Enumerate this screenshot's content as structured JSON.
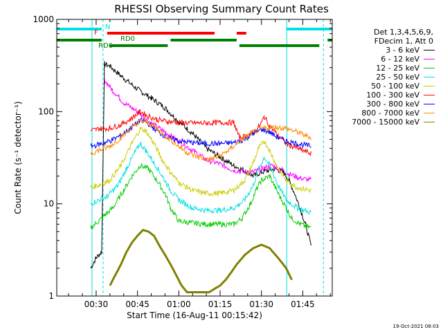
{
  "chart_data": {
    "type": "line",
    "title": "RHESSI Observing Summary Count Rates",
    "xlabel": "Start Time (16-Aug-11 00:15:42)",
    "ylabel": "Count Rate (s⁻¹ detector⁻¹)",
    "y_scale": "log",
    "ylim": [
      1,
      1000
    ],
    "xlim_minutes_utc": [
      15.7,
      115.7
    ],
    "x_ticks": [
      "00:30",
      "00:45",
      "01:00",
      "01:15",
      "01:30",
      "01:45"
    ],
    "y_ticks": [
      "1",
      "10",
      "100",
      "1000"
    ],
    "legend_header": [
      "Det 1,3,4,5,6,9,",
      "FDecim 1, Att 0"
    ],
    "legend_placement": "right",
    "series": [
      {
        "name": "3 - 6 keV",
        "color": "#000000",
        "points": [
          [
            28,
            2
          ],
          [
            30,
            2.6
          ],
          [
            32,
            3
          ],
          [
            33,
            330
          ],
          [
            35,
            310
          ],
          [
            40,
            230
          ],
          [
            45,
            175
          ],
          [
            50,
            140
          ],
          [
            55,
            110
          ],
          [
            60,
            78
          ],
          [
            65,
            58
          ],
          [
            70,
            40
          ],
          [
            75,
            32
          ],
          [
            80,
            26
          ],
          [
            85,
            22
          ],
          [
            87,
            20
          ],
          [
            90,
            22
          ],
          [
            95,
            24
          ],
          [
            98,
            22
          ],
          [
            100,
            18
          ],
          [
            102,
            13
          ],
          [
            104,
            9
          ],
          [
            106,
            6
          ],
          [
            108,
            3.5
          ]
        ]
      },
      {
        "name": "6 - 12 keV",
        "color": "#ff00ff",
        "points": [
          [
            28,
            null
          ],
          [
            32,
            null
          ],
          [
            33,
            220
          ],
          [
            36,
            170
          ],
          [
            40,
            125
          ],
          [
            45,
            100
          ],
          [
            50,
            75
          ],
          [
            55,
            60
          ],
          [
            60,
            48
          ],
          [
            65,
            38
          ],
          [
            70,
            30
          ],
          [
            75,
            27
          ],
          [
            80,
            23
          ],
          [
            85,
            22
          ],
          [
            87,
            22
          ],
          [
            90,
            24
          ],
          [
            94,
            26
          ],
          [
            98,
            23
          ],
          [
            100,
            21
          ],
          [
            104,
            19
          ],
          [
            108,
            18
          ]
        ]
      },
      {
        "name": "12 - 25 keV",
        "color": "#00cc00",
        "points": [
          [
            28,
            5.5
          ],
          [
            31,
            6.5
          ],
          [
            33,
            7.5
          ],
          [
            36,
            9
          ],
          [
            40,
            14
          ],
          [
            43,
            20
          ],
          [
            46,
            26
          ],
          [
            49,
            24
          ],
          [
            52,
            18
          ],
          [
            55,
            13
          ],
          [
            57,
            9
          ],
          [
            60,
            6.5
          ],
          [
            65,
            6.2
          ],
          [
            70,
            6
          ],
          [
            75,
            6
          ],
          [
            80,
            6
          ],
          [
            83,
            7
          ],
          [
            86,
            10
          ],
          [
            88,
            14
          ],
          [
            90,
            18
          ],
          [
            93,
            20
          ],
          [
            96,
            13
          ],
          [
            99,
            9
          ],
          [
            101,
            7
          ],
          [
            104,
            6
          ],
          [
            108,
            5.5
          ]
        ]
      },
      {
        "name": "25 - 50 keV",
        "color": "#00e0e0",
        "points": [
          [
            28,
            10
          ],
          [
            31,
            11
          ],
          [
            34,
            12
          ],
          [
            38,
            16
          ],
          [
            41,
            24
          ],
          [
            44,
            36
          ],
          [
            46,
            45
          ],
          [
            48,
            38
          ],
          [
            51,
            28
          ],
          [
            54,
            20
          ],
          [
            57,
            14
          ],
          [
            60,
            11
          ],
          [
            65,
            9
          ],
          [
            70,
            8.5
          ],
          [
            75,
            8.5
          ],
          [
            80,
            9
          ],
          [
            84,
            11
          ],
          [
            87,
            16
          ],
          [
            89,
            24
          ],
          [
            91,
            32
          ],
          [
            93,
            26
          ],
          [
            96,
            16
          ],
          [
            99,
            11
          ],
          [
            103,
            9
          ],
          [
            108,
            8
          ]
        ]
      },
      {
        "name": "50 - 100 keV",
        "color": "#cccc00",
        "points": [
          [
            28,
            15
          ],
          [
            31,
            16
          ],
          [
            35,
            18
          ],
          [
            39,
            26
          ],
          [
            43,
            45
          ],
          [
            46,
            65
          ],
          [
            48,
            62
          ],
          [
            51,
            45
          ],
          [
            54,
            30
          ],
          [
            57,
            22
          ],
          [
            60,
            17
          ],
          [
            65,
            14
          ],
          [
            70,
            13
          ],
          [
            75,
            13
          ],
          [
            80,
            14
          ],
          [
            84,
            18
          ],
          [
            87,
            28
          ],
          [
            89,
            40
          ],
          [
            91,
            48
          ],
          [
            93,
            38
          ],
          [
            96,
            24
          ],
          [
            99,
            18
          ],
          [
            103,
            15
          ],
          [
            108,
            14
          ]
        ]
      },
      {
        "name": "100 - 300 keV",
        "color": "#ff0000",
        "points": [
          [
            28,
            62
          ],
          [
            31,
            65
          ],
          [
            35,
            66
          ],
          [
            39,
            72
          ],
          [
            43,
            85
          ],
          [
            46,
            100
          ],
          [
            48,
            92
          ],
          [
            52,
            82
          ],
          [
            56,
            78
          ],
          [
            60,
            76
          ],
          [
            65,
            75
          ],
          [
            70,
            75
          ],
          [
            75,
            76
          ],
          [
            80,
            76
          ],
          [
            82,
            52
          ],
          [
            85,
            55
          ],
          [
            88,
            62
          ],
          [
            90,
            75
          ],
          [
            91,
            88
          ],
          [
            93,
            70
          ],
          [
            96,
            55
          ],
          [
            99,
            45
          ],
          [
            103,
            40
          ],
          [
            108,
            35
          ]
        ]
      },
      {
        "name": "300 - 800 keV",
        "color": "#0000ff",
        "points": [
          [
            28,
            42
          ],
          [
            31,
            44
          ],
          [
            35,
            48
          ],
          [
            39,
            55
          ],
          [
            43,
            68
          ],
          [
            46,
            80
          ],
          [
            48,
            78
          ],
          [
            52,
            62
          ],
          [
            56,
            52
          ],
          [
            60,
            48
          ],
          [
            65,
            46
          ],
          [
            70,
            45
          ],
          [
            75,
            45
          ],
          [
            80,
            46
          ],
          [
            84,
            50
          ],
          [
            87,
            58
          ],
          [
            90,
            64
          ],
          [
            93,
            60
          ],
          [
            96,
            52
          ],
          [
            99,
            48
          ],
          [
            103,
            45
          ],
          [
            108,
            42
          ]
        ]
      },
      {
        "name": "800 - 7000 keV",
        "color": "#ff8800",
        "points": [
          [
            28,
            35
          ],
          [
            31,
            38
          ],
          [
            35,
            42
          ],
          [
            39,
            52
          ],
          [
            43,
            68
          ],
          [
            46,
            78
          ],
          [
            48,
            78
          ],
          [
            52,
            66
          ],
          [
            56,
            52
          ],
          [
            60,
            42
          ],
          [
            63,
            36
          ],
          [
            67,
            32
          ],
          [
            71,
            30
          ],
          [
            75,
            33
          ],
          [
            79,
            40
          ],
          [
            83,
            50
          ],
          [
            87,
            60
          ],
          [
            91,
            66
          ],
          [
            95,
            68
          ],
          [
            99,
            66
          ],
          [
            103,
            60
          ],
          [
            108,
            52
          ]
        ]
      },
      {
        "name": "7000 - 15000 keV",
        "color": "#808000",
        "points": [
          [
            29,
            null
          ],
          [
            33,
            null
          ],
          [
            35,
            1.3
          ],
          [
            37,
            1.7
          ],
          [
            39,
            2.2
          ],
          [
            41,
            3
          ],
          [
            43,
            3.8
          ],
          [
            45,
            4.5
          ],
          [
            47,
            5.2
          ],
          [
            49,
            5
          ],
          [
            51,
            4.5
          ],
          [
            53,
            3.5
          ],
          [
            55,
            2.8
          ],
          [
            57,
            2.2
          ],
          [
            59,
            1.7
          ],
          [
            61,
            1.3
          ],
          [
            63,
            1.1
          ],
          [
            65,
            1.1
          ],
          [
            67,
            1.1
          ],
          [
            69,
            1.1
          ],
          [
            71,
            1.1
          ],
          [
            73,
            1.2
          ],
          [
            75,
            1.3
          ],
          [
            77,
            1.5
          ],
          [
            79,
            1.8
          ],
          [
            81,
            2.2
          ],
          [
            84,
            2.8
          ],
          [
            87,
            3.3
          ],
          [
            90,
            3.6
          ],
          [
            93,
            3.3
          ],
          [
            96,
            2.6
          ],
          [
            99,
            2
          ],
          [
            101,
            1.5
          ]
        ]
      }
    ],
    "flag_bars": [
      {
        "label": "N",
        "color": "#00e0e0",
        "segments": [
          [
            15.7,
            32
          ],
          [
            99,
            115.7
          ]
        ]
      },
      {
        "label": "F",
        "color": "#ff0000",
        "segments": [
          [
            34,
            73
          ],
          [
            81,
            84.5
          ]
        ]
      },
      {
        "label": "RD0",
        "color": "#008000",
        "segments": [
          [
            15.7,
            32
          ],
          [
            57,
            81
          ],
          [
            114,
            115.7
          ]
        ]
      },
      {
        "label": "RD6",
        "color": "#008000",
        "segments": [
          [
            35,
            56
          ],
          [
            82,
            111
          ]
        ]
      }
    ],
    "markers": [
      {
        "style": "solid",
        "color": "#00e0e0",
        "x": 28.5
      },
      {
        "style": "dashed",
        "color": "#00e0e0",
        "x": 32.5
      },
      {
        "style": "solid",
        "color": "#00e0e0",
        "x": 99.2
      },
      {
        "style": "dashed",
        "color": "#00e0e0",
        "x": 112.5
      }
    ],
    "timestamp": "19-Oct-2021 08:03"
  }
}
